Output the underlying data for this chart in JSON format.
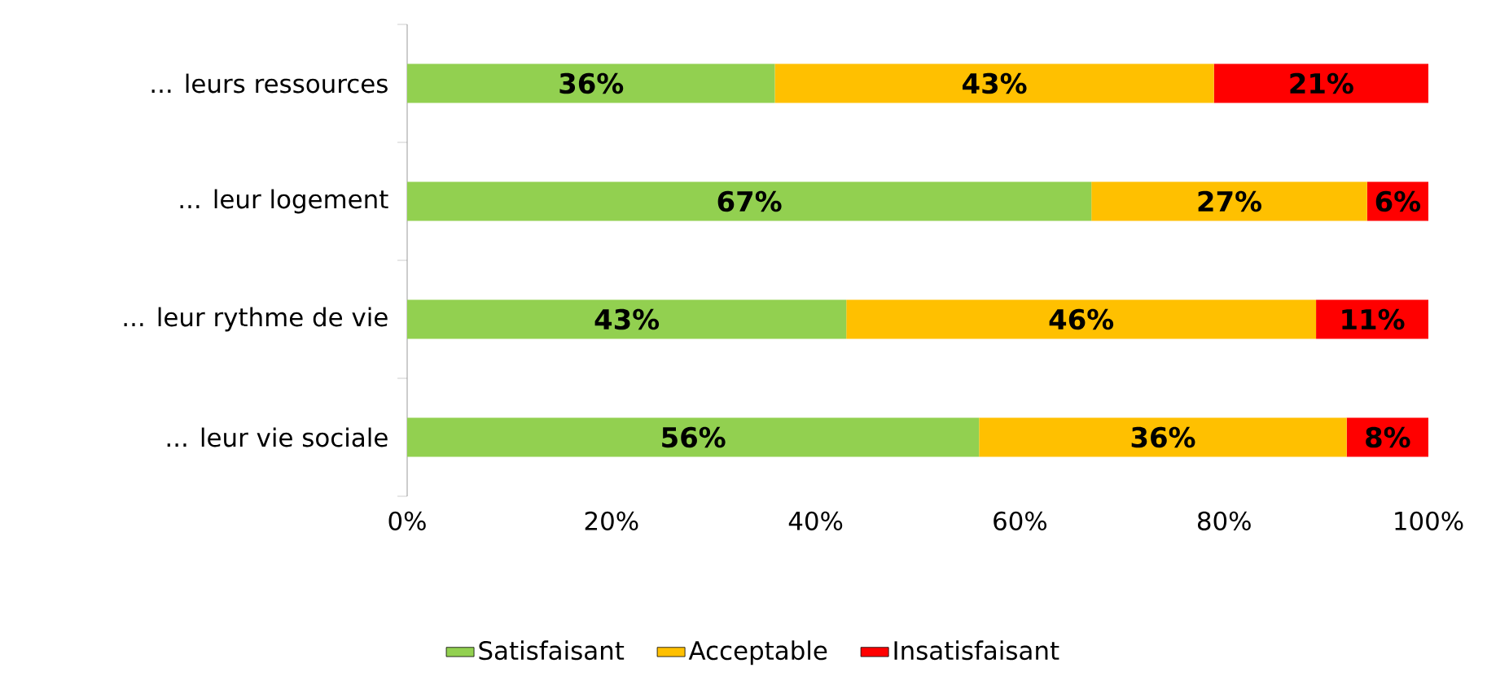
{
  "chart_data": {
    "type": "bar",
    "orientation": "horizontal",
    "stacked": true,
    "categories": [
      "... leurs ressources",
      "... leur logement",
      "... leur rythme de vie",
      "... leur vie sociale"
    ],
    "series": [
      {
        "name": "Satisfaisant",
        "color": "#92d050",
        "values": [
          36,
          67,
          43,
          56
        ],
        "value_labels": [
          "36%",
          "67%",
          "43%",
          "56%"
        ]
      },
      {
        "name": "Acceptable",
        "color": "#ffc000",
        "values": [
          43,
          27,
          46,
          36
        ],
        "value_labels": [
          "43%",
          "27%",
          "46%",
          "36%"
        ]
      },
      {
        "name": "Insatisfaisant",
        "color": "#ff0000",
        "values": [
          21,
          6,
          11,
          8
        ],
        "value_labels": [
          "21%",
          "6%",
          "11%",
          "8%"
        ]
      }
    ],
    "xlim": [
      0,
      100
    ],
    "xticks": [
      {
        "value": 0,
        "label": "0%"
      },
      {
        "value": 20,
        "label": "20%"
      },
      {
        "value": 40,
        "label": "40%"
      },
      {
        "value": 60,
        "label": "60%"
      },
      {
        "value": 80,
        "label": "80%"
      },
      {
        "value": 100,
        "label": "100%"
      }
    ],
    "grid": false,
    "legend": "bottom"
  }
}
